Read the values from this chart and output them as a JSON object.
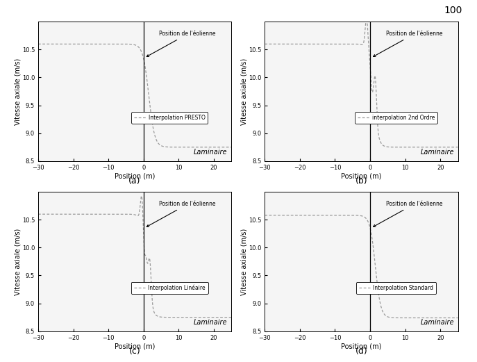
{
  "xlim": [
    -30,
    25
  ],
  "ylim": [
    8.5,
    11.0
  ],
  "yticks": [
    8.5,
    9.0,
    9.5,
    10.0,
    10.5
  ],
  "xticks": [
    -30,
    -20,
    -10,
    0,
    10,
    20
  ],
  "xlabel": "Position (m)",
  "ylabel": "Vitesse axiale (m/s)",
  "laminaire_label": "Laminaire",
  "annotation_text": "Position de l'éolienne",
  "turbine_x": 0,
  "upstream_v": 10.6,
  "downstream_v": 8.75,
  "legend_labels": [
    "Interpolation PRESTO",
    "interpolation 2nd Ordre",
    "Interpolation Linéaire",
    "Interpolation Standard"
  ],
  "subplot_labels": [
    "(a)",
    "(b)",
    "(c)",
    "(d)"
  ],
  "line_color": "#999999",
  "bg_color": "#f5f5f5",
  "page_number": "100",
  "fig_width": 6.87,
  "fig_height": 5.21,
  "dpi": 100
}
